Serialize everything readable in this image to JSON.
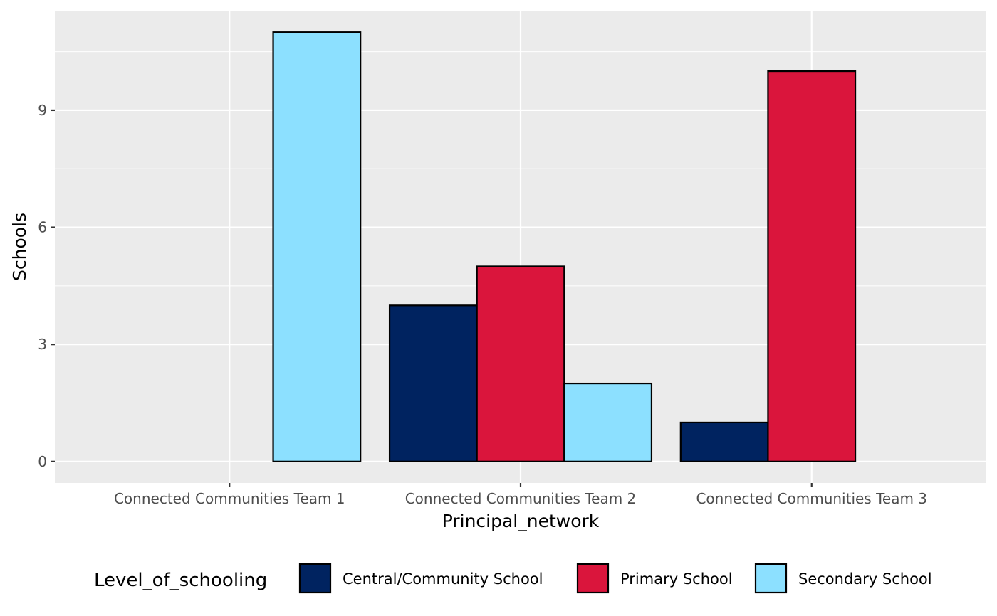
{
  "chart_data": {
    "type": "bar",
    "title": "",
    "xlabel": "Principal_network",
    "ylabel": "Schools",
    "categories": [
      "Connected Communities Team 1",
      "Connected Communities Team 2",
      "Connected Communities Team 3"
    ],
    "series": [
      {
        "name": "Central/Community School",
        "color": "#002360",
        "values": [
          0,
          4,
          1
        ]
      },
      {
        "name": "Primary School",
        "color": "#DA153C",
        "values": [
          0,
          5,
          10
        ]
      },
      {
        "name": "Secondary School",
        "color": "#8CE0FF",
        "values": [
          11,
          2,
          0
        ]
      }
    ],
    "ylim": [
      -0.55,
      11.55
    ],
    "yticks": [
      0,
      3,
      6,
      9
    ],
    "grid": true,
    "legend": {
      "title": "Level_of_schooling",
      "position": "bottom"
    },
    "panel_color": "#EBEBEB"
  }
}
